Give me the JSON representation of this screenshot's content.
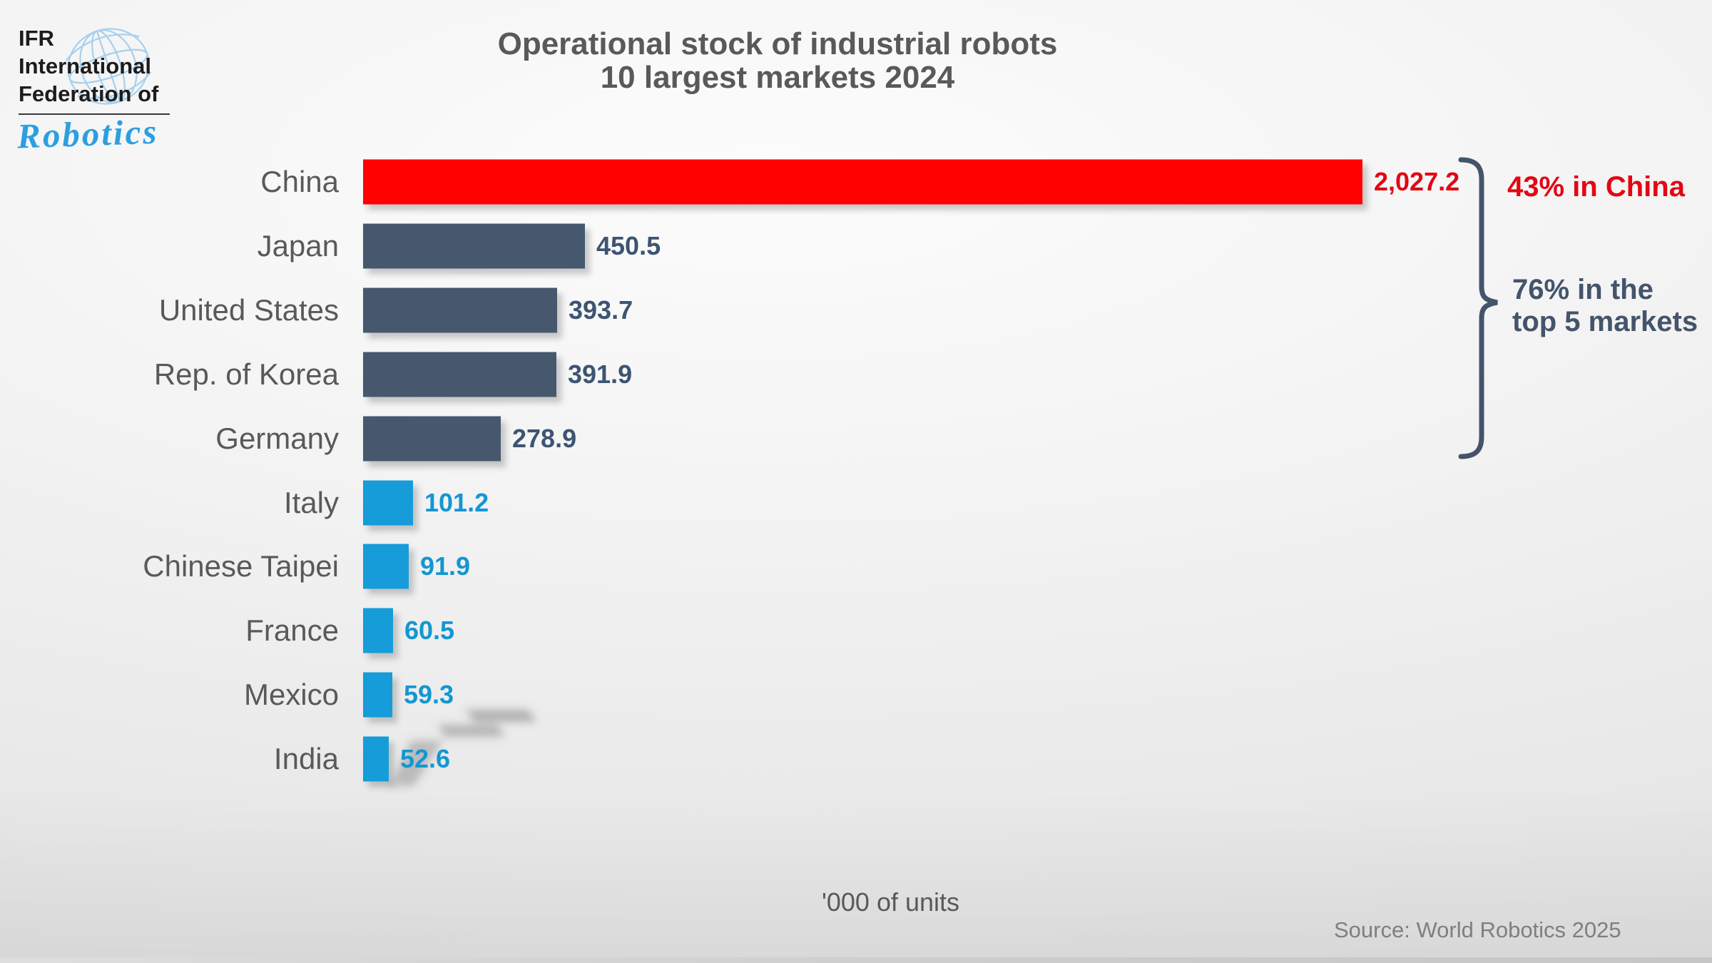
{
  "logo": {
    "lines": [
      "IFR",
      "International",
      "Federation of"
    ],
    "script": "Robotics"
  },
  "title": {
    "line1": "Operational stock of industrial robots",
    "line2": "10 largest markets 2024"
  },
  "chart_data": {
    "type": "bar",
    "orientation": "horizontal",
    "title": "Operational stock of industrial robots 10 largest markets 2024",
    "xlabel": "'000 of units",
    "xlim": [
      0,
      2100
    ],
    "grid": false,
    "categories": [
      "China",
      "Japan",
      "United States",
      "Rep. of Korea",
      "Germany",
      "Italy",
      "Chinese Taipei",
      "France",
      "Mexico",
      "India"
    ],
    "values": [
      2027.2,
      450.5,
      393.7,
      391.9,
      278.9,
      101.2,
      91.9,
      60.5,
      59.3,
      52.6
    ],
    "value_labels": [
      "2,027.2",
      "450.5",
      "393.7",
      "391.9",
      "278.9",
      "101.2",
      "91.9",
      "60.5",
      "59.3",
      "52.6"
    ],
    "bar_colors": [
      "#fe0100",
      "#46586e",
      "#46586e",
      "#46586e",
      "#46586e",
      "#169cd8",
      "#169cd8",
      "#169cd8",
      "#169cd8",
      "#169cd8"
    ],
    "value_colors": [
      "#e30613",
      "#3d5472",
      "#3d5472",
      "#3d5472",
      "#3d5472",
      "#1496d2",
      "#1496d2",
      "#1496d2",
      "#1496d2",
      "#1496d2"
    ],
    "annotations": {
      "china_share": "43% in China",
      "top5_line1": "76% in the",
      "top5_line2": "top 5 markets"
    }
  },
  "source": "Source: World Robotics 2025",
  "colors": {
    "label_gray": "#595959",
    "dark_slate": "#44546a",
    "blue": "#169cd8",
    "red": "#fe0100",
    "red_text": "#e30613",
    "source_gray": "#7f7f7f"
  }
}
